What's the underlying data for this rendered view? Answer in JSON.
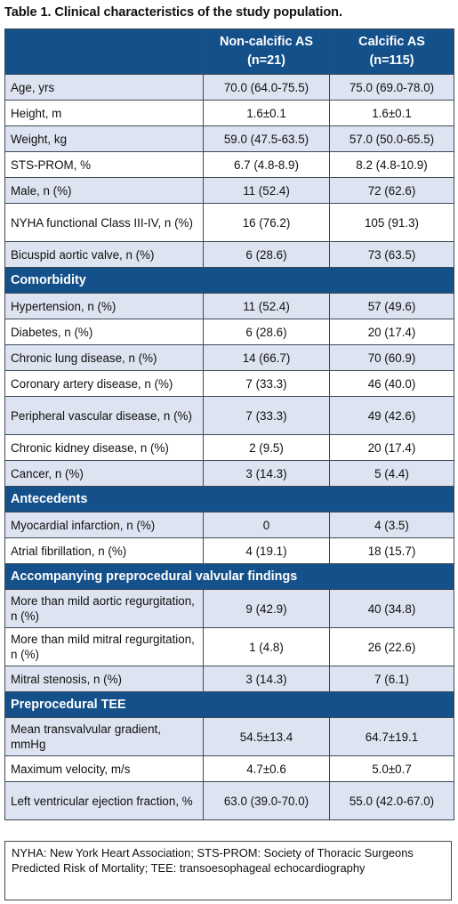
{
  "title": "Table 1. Clinical characteristics of the study population.",
  "header": {
    "col1": "",
    "col2_line1": "Non-calcific AS",
    "col2_line2": "(n=21)",
    "col3_line1": "Calcific AS",
    "col3_line2": "(n=115)"
  },
  "rows": [
    {
      "label": "Age, yrs",
      "a": "70.0 (64.0-75.5)",
      "b": "75.0 (69.0-78.0)"
    },
    {
      "label": "Height, m",
      "a": "1.6±0.1",
      "b": "1.6±0.1"
    },
    {
      "label": "Weight, kg",
      "a": "59.0 (47.5-63.5)",
      "b": "57.0 (50.0-65.5)"
    },
    {
      "label": "STS-PROM, %",
      "a": "6.7 (4.8-8.9)",
      "b": "8.2 (4.8-10.9)"
    },
    {
      "label": "Male, n (%)",
      "a": "11 (52.4)",
      "b": "72 (62.6)"
    },
    {
      "label": "NYHA functional Class III-IV, n (%)",
      "a": "16 (76.2)",
      "b": "105 (91.3)"
    },
    {
      "label": "Bicuspid aortic valve, n (%)",
      "a": "6 (28.6)",
      "b": "73 (63.5)"
    }
  ],
  "sections": {
    "comorbidity": "Comorbidity",
    "antecedents": "Antecedents",
    "valvular": "Accompanying preprocedural valvular findings",
    "tee": "Preprocedural TEE"
  },
  "comorbidity_rows": [
    {
      "label": "Hypertension, n (%)",
      "a": "11 (52.4)",
      "b": "57 (49.6)"
    },
    {
      "label": "Diabetes, n (%)",
      "a": "6 (28.6)",
      "b": "20 (17.4)"
    },
    {
      "label": "Chronic lung disease, n (%)",
      "a": "14 (66.7)",
      "b": "70 (60.9)"
    },
    {
      "label": "Coronary artery disease, n (%)",
      "a": "7 (33.3)",
      "b": "46 (40.0)"
    },
    {
      "label": "Peripheral vascular disease, n (%)",
      "a": "7 (33.3)",
      "b": "49 (42.6)"
    },
    {
      "label": "Chronic kidney disease, n (%)",
      "a": "2 (9.5)",
      "b": "20 (17.4)"
    },
    {
      "label": "Cancer, n (%)",
      "a": "3 (14.3)",
      "b": "5 (4.4)"
    }
  ],
  "antecedent_rows": [
    {
      "label": "Myocardial infarction, n (%)",
      "a": "0",
      "b": "4 (3.5)"
    },
    {
      "label": "Atrial fibrillation, n (%)",
      "a": "4 (19.1)",
      "b": "18 (15.7)"
    }
  ],
  "valvular_rows": [
    {
      "label": "More than mild aortic regurgitation, n (%)",
      "a": "9 (42.9)",
      "b": "40 (34.8)"
    },
    {
      "label": "More than mild mitral regurgitation, n (%)",
      "a": "1 (4.8)",
      "b": "26 (22.6)"
    },
    {
      "label": "Mitral stenosis, n (%)",
      "a": "3 (14.3)",
      "b": "7 (6.1)"
    }
  ],
  "tee_rows": [
    {
      "label": "Mean transvalvular gradient, mmHg",
      "a": "54.5±13.4",
      "b": "64.7±19.1"
    },
    {
      "label": "Maximum velocity, m/s",
      "a": "4.7±0.6",
      "b": "5.0±0.7"
    },
    {
      "label": "Left ventricular ejection fraction, %",
      "a": "63.0 (39.0-70.0)",
      "b": "55.0 (42.0-67.0)"
    }
  ],
  "footnote": "NYHA: New York Heart Association; STS-PROM: Society of Thoracic Surgeons Predicted Risk of Mortality; TEE: transoesophageal echocardiography",
  "colors": {
    "header_blue": "#14508a",
    "row_tint": "#dde3f0"
  }
}
